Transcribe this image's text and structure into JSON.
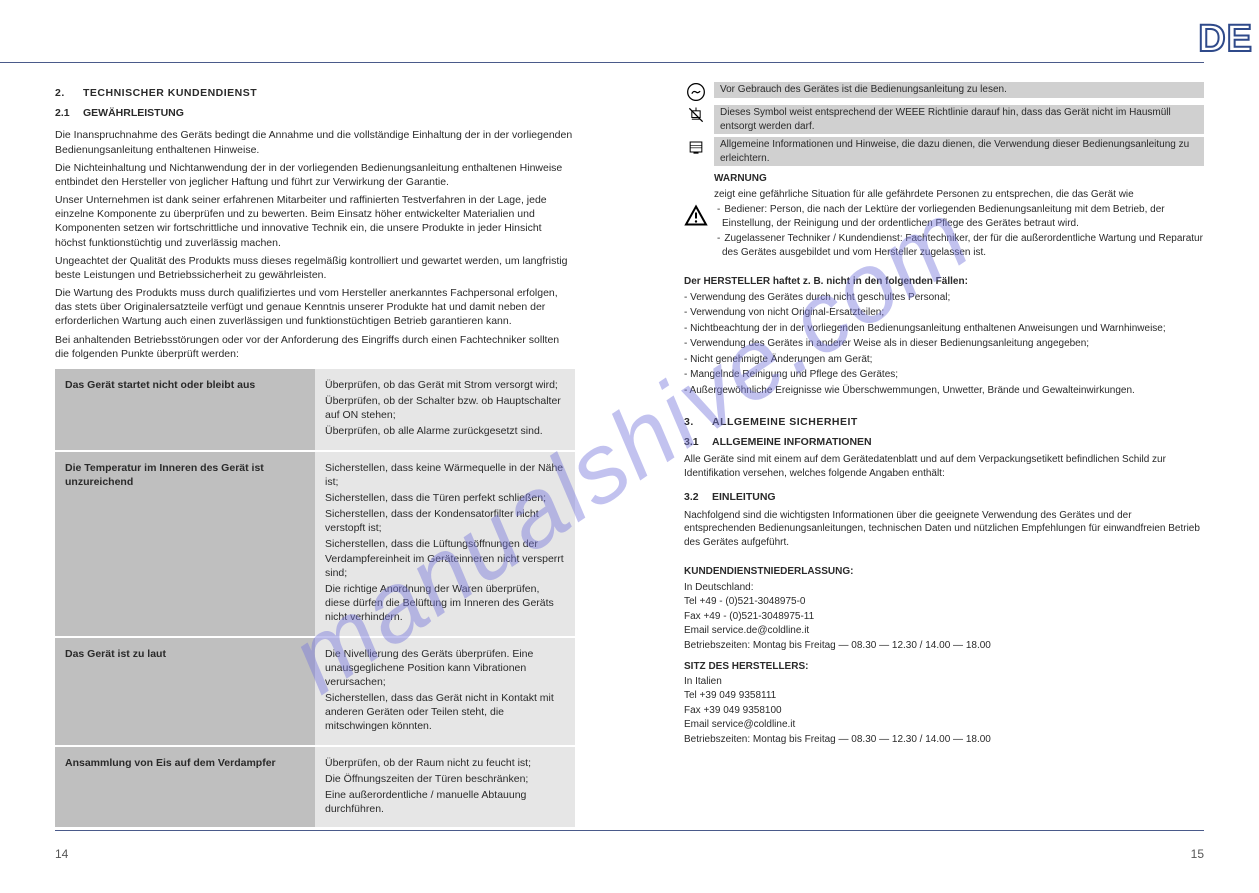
{
  "language_tag": "DE",
  "page_num_left": "14",
  "page_num_right": "15",
  "watermark": "manualshive.com",
  "left": {
    "sect2": {
      "num": "2.",
      "title": "TECHNISCHER KUNDENDIENST",
      "subnum": "2.1",
      "subtitle": "GEWÄHRLEISTUNG",
      "p1": "Die Inanspruchnahme des Geräts bedingt die Annahme und die vollständige Einhaltung der in der vorliegenden Bedienungsanleitung enthaltenen Hinweise.",
      "p2": "Die Nichteinhaltung und Nichtanwendung der in der vorliegenden Bedienungsanleitung enthaltenen Hinweise entbindet den Hersteller von jeglicher Haftung und führt zur Verwirkung der Garantie.",
      "p3": "Unser Unternehmen ist dank seiner erfahrenen Mitarbeiter und raffinierten Testverfahren in der Lage, jede einzelne Komponente zu überprüfen und zu bewerten. Beim Einsatz höher entwickelter Materialien und Komponenten setzen wir fortschrittliche und innovative Technik ein, die unsere Produkte in jeder Hinsicht höchst funktionstüchtig und zuverlässig machen.",
      "p4": "Ungeachtet der Qualität des Produkts muss dieses regelmäßig kontrolliert und gewartet werden, um langfristig beste Leistungen und Betriebssicherheit zu gewährleisten.",
      "p5": "Die Wartung des Produkts muss durch qualifiziertes und vom Hersteller anerkanntes Fachpersonal erfolgen, das stets über Originalersatzteile verfügt und genaue Kenntnis unserer Produkte hat und damit neben der erforderlichen Wartung auch einen zuverlässigen und funktionstüchtigen Betrieb garantieren kann.",
      "p6": "Bei anhaltenden Betriebsstörungen oder vor der Anforderung des Eingriffs durch einen Fachtechniker sollten die folgenden Punkte überprüft werden:"
    },
    "table": {
      "rows": [
        {
          "label": "Das Gerät startet nicht oder bleibt aus",
          "detail": [
            "Überprüfen, ob das Gerät mit Strom versorgt wird;",
            "Überprüfen, ob der Schalter bzw. ob Hauptschalter auf ON stehen;",
            "Überprüfen, ob alle Alarme zurückgesetzt sind."
          ]
        },
        {
          "label": "Die Temperatur im Inneren des Gerät ist unzureichend",
          "detail": [
            "Sicherstellen, dass keine Wärmequelle in der Nähe ist;",
            "Sicherstellen, dass die Türen perfekt schließen;",
            "Sicherstellen, dass der Kondensatorfilter nicht verstopft ist;",
            "Sicherstellen, dass die Lüftungsöffnungen der Verdampfereinheit im Geräteinneren nicht versperrt sind;",
            "Die richtige Anordnung der Waren überprüfen, diese dürfen die Belüftung im Inneren des Geräts nicht verhindern."
          ]
        },
        {
          "label": "Das Gerät ist zu laut",
          "detail": [
            "Die Nivellierung des Geräts überprüfen. Eine unausgeglichene Position kann Vibrationen verursachen;",
            "Sicherstellen, dass das Gerät nicht in Kontakt mit anderen Geräten oder Teilen steht, die mitschwingen könnten."
          ]
        },
        {
          "label": "Ansammlung von Eis auf dem Verdampfer",
          "detail": [
            "Überprüfen, ob der Raum nicht zu feucht ist;",
            "Die Öffnungszeiten der Türen beschränken;",
            "Eine außerordentliche / manuelle Abtauung durchführen."
          ]
        }
      ],
      "header_bg": "#bfbfbf",
      "body_bg": "#e6e6e6"
    }
  },
  "right": {
    "symbols": [
      {
        "icon": "hand-book",
        "txt": "Vor Gebrauch des Gerätes ist die Bedienungsanleitung zu lesen.",
        "shade": true
      },
      {
        "icon": "weee",
        "txt": "Dieses Symbol weist entsprechend der WEEE Richtlinie darauf hin, dass das Gerät nicht im Hausmüll entsorgt werden darf.",
        "shade": true
      },
      {
        "icon": "manual",
        "txt": "Allgemeine Informationen und Hinweise, die dazu dienen, die Verwendung dieser Bedienungsanleitung zu erleichtern.",
        "shade": true
      }
    ],
    "warn": {
      "hdr": "WARNUNG",
      "intro": "zeigt eine gefährliche Situation für alle gefährdete Personen zu entsprechen, die das Gerät wie",
      "items": [
        "Bediener: Person, die nach der Lektüre der vorliegenden Bedienungsanleitung mit dem Betrieb, der Einstellung, der Reinigung und der ordentlichen Pflege des Gerätes betraut wird.",
        "Zugelassener Techniker / Kundendienst: Fachtechniker, der für die außerordentliche Wartung und Reparatur des Gerätes ausgebildet und vom Hersteller zugelassen ist."
      ]
    },
    "extras": {
      "lines": [
        "Der HERSTELLER haftet z. B. nicht in den folgenden Fällen:",
        "- Verwendung des Gerätes durch nicht geschultes Personal;",
        "- Verwendung von nicht Original-Ersatzteilen;",
        "- Nichtbeachtung der in der vorliegenden Bedienungsanleitung enthaltenen Anweisungen und Warnhinweise;",
        "- Verwendung des Gerätes in anderer Weise als in dieser Bedienungsanleitung angegeben;",
        "- Nicht genehmigte Änderungen am Gerät;",
        "- Mangelnde Reinigung und Pflege des Gerätes;",
        "- Außergewöhnliche Ereignisse wie Überschwemmungen, Unwetter, Brände und Gewalteinwirkungen."
      ]
    },
    "sect3": {
      "num": "3.",
      "title": "ALLGEMEINE SICHERHEIT",
      "sub1": {
        "num": "3.1",
        "title": "ALLGEMEINE INFORMATIONEN",
        "body": "Alle Geräte sind mit einem auf dem Gerätedatenblatt und auf dem Verpackungsetikett befindlichen Schild zur Identifikation versehen, welches folgende Angaben enthält:"
      },
      "sub2": {
        "num": "3.2",
        "title": "EINLEITUNG",
        "body": "Nachfolgend sind die wichtigsten Informationen über die geeignete Verwendung des Gerätes und der entsprechenden Bedienungsanleitungen, technischen Daten und nützlichen Empfehlungen für einwandfreien Betrieb des Gerätes aufgeführt."
      }
    },
    "contact": {
      "title": "KUNDENDIENSTNIEDERLASSUNG:",
      "lines": [
        "In Deutschland:",
        "Tel   +49 - (0)521-3048975-0",
        "Fax   +49 - (0)521-3048975-11",
        "Email   service.de@coldline.it",
        "Betriebszeiten:   Montag bis Freitag — 08.30 — 12.30 / 14.00 — 18.00",
        "",
        "SITZ DES HERSTELLERS:",
        "In Italien",
        "Tel   +39 049 9358111",
        "Fax   +39 049 9358100",
        "Email   service@coldline.it",
        "Betriebszeiten:   Montag bis Freitag — 08.30 — 12.30 / 14.00 — 18.00"
      ]
    }
  }
}
